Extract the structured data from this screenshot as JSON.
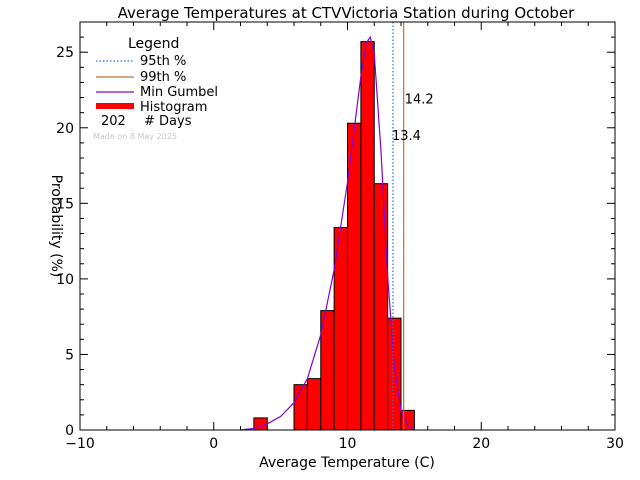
{
  "chart_data": {
    "type": "bar",
    "title": "Average Temperatures at CTVVictoria Station during October",
    "xlabel": "Average Temperature (C)",
    "ylabel": "Probability (%)",
    "xlim": [
      -10,
      30
    ],
    "ylim": [
      0,
      27
    ],
    "x_ticks": [
      "−10",
      "0",
      "10",
      "20",
      "30"
    ],
    "x_tick_values": [
      -10,
      0,
      10,
      20,
      30
    ],
    "y_ticks": [
      "0",
      "5",
      "10",
      "15",
      "20",
      "25"
    ],
    "y_tick_values": [
      0,
      5,
      10,
      15,
      20,
      25
    ],
    "bin_width": 1,
    "bins": [
      {
        "left": 3,
        "value": 0.8
      },
      {
        "left": 6,
        "value": 3.0
      },
      {
        "left": 7,
        "value": 3.4
      },
      {
        "left": 8,
        "value": 7.9
      },
      {
        "left": 9,
        "value": 13.4
      },
      {
        "left": 10,
        "value": 20.3
      },
      {
        "left": 11,
        "value": 25.7
      },
      {
        "left": 12,
        "value": 16.3
      },
      {
        "left": 13,
        "value": 7.4
      },
      {
        "left": 14,
        "value": 1.3
      }
    ],
    "bin_color": "#ff0000",
    "gumbel_curve": {
      "name": "Min Gumbel",
      "color": "#8800cc",
      "x": [
        2.0,
        3.0,
        4.0,
        5.0,
        6.0,
        7.0,
        8.0,
        9.0,
        10.0,
        10.5,
        11.0,
        11.4,
        11.7,
        12.0,
        12.5,
        13.0,
        13.5,
        14.0,
        14.5,
        15.0
      ],
      "y": [
        0.0,
        0.1,
        0.4,
        0.9,
        1.8,
        3.4,
        6.3,
        10.6,
        16.4,
        19.9,
        23.4,
        25.6,
        26.0,
        24.9,
        18.5,
        10.2,
        4.2,
        1.3,
        0.3,
        0.0
      ]
    },
    "percentile_95": {
      "value": 13.4,
      "label": "13.4",
      "color": "#1f77d4"
    },
    "percentile_99": {
      "value": 14.2,
      "label": "14.2",
      "color": "#b8732e"
    },
    "legend": {
      "title": "Legend",
      "placement": "top-left",
      "entries": [
        {
          "label": "95th %",
          "style": "dotted",
          "color": "#1f77d4"
        },
        {
          "label": "99th %",
          "style": "solid",
          "color": "#b8732e"
        },
        {
          "label": "Min Gumbel",
          "style": "solid",
          "color": "#8800cc"
        },
        {
          "label": "Histogram",
          "style": "thick",
          "color": "#ff0000"
        }
      ],
      "count_value": "202",
      "count_label": "# Days",
      "made_on": "Made on 8 May 2025"
    }
  }
}
